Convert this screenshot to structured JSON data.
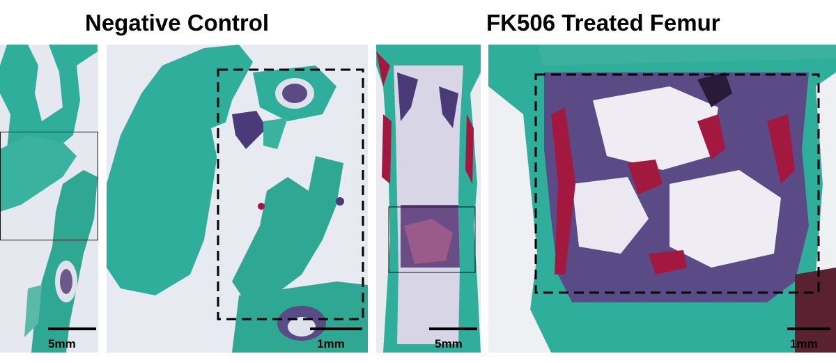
{
  "titles": {
    "negative_control": "Negative Control",
    "fk506": "FK506 Treated Femur"
  },
  "scale_bars": {
    "panel_1": "5mm",
    "panel_2": "1mm",
    "panel_3": "5mm",
    "panel_4": "1mm"
  },
  "colors": {
    "tissue_green": "#2fae9b",
    "bone_red": "#a3183e",
    "marrow_purple": "#4b3a78",
    "background": "#e8eaf0"
  }
}
